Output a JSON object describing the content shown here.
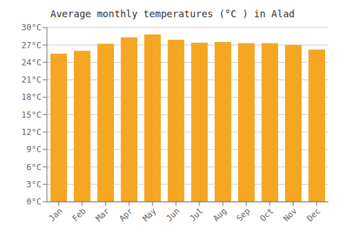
{
  "chart_data": {
    "type": "bar",
    "title": "Average monthly temperatures (°C ) in Alad",
    "categories": [
      "Jan",
      "Feb",
      "Mar",
      "Apr",
      "May",
      "Jun",
      "Jul",
      "Aug",
      "Sep",
      "Oct",
      "Nov",
      "Dec"
    ],
    "values": [
      25.5,
      26.0,
      27.2,
      28.3,
      28.8,
      27.9,
      27.4,
      27.5,
      27.3,
      27.3,
      27.0,
      26.2
    ],
    "color": "#F5A623",
    "ylim": [
      0,
      30
    ],
    "yticks": [
      {
        "value": 0,
        "label": "0°C"
      },
      {
        "value": 3,
        "label": "3°C"
      },
      {
        "value": 6,
        "label": "6°C"
      },
      {
        "value": 9,
        "label": "9°C"
      },
      {
        "value": 12,
        "label": "12°C"
      },
      {
        "value": 15,
        "label": "15°C"
      },
      {
        "value": 18,
        "label": "18°C"
      },
      {
        "value": 21,
        "label": "21°C"
      },
      {
        "value": 24,
        "label": "24°C"
      },
      {
        "value": 27,
        "label": "27°C"
      },
      {
        "value": 30,
        "label": "30°C"
      }
    ],
    "grid": true
  }
}
